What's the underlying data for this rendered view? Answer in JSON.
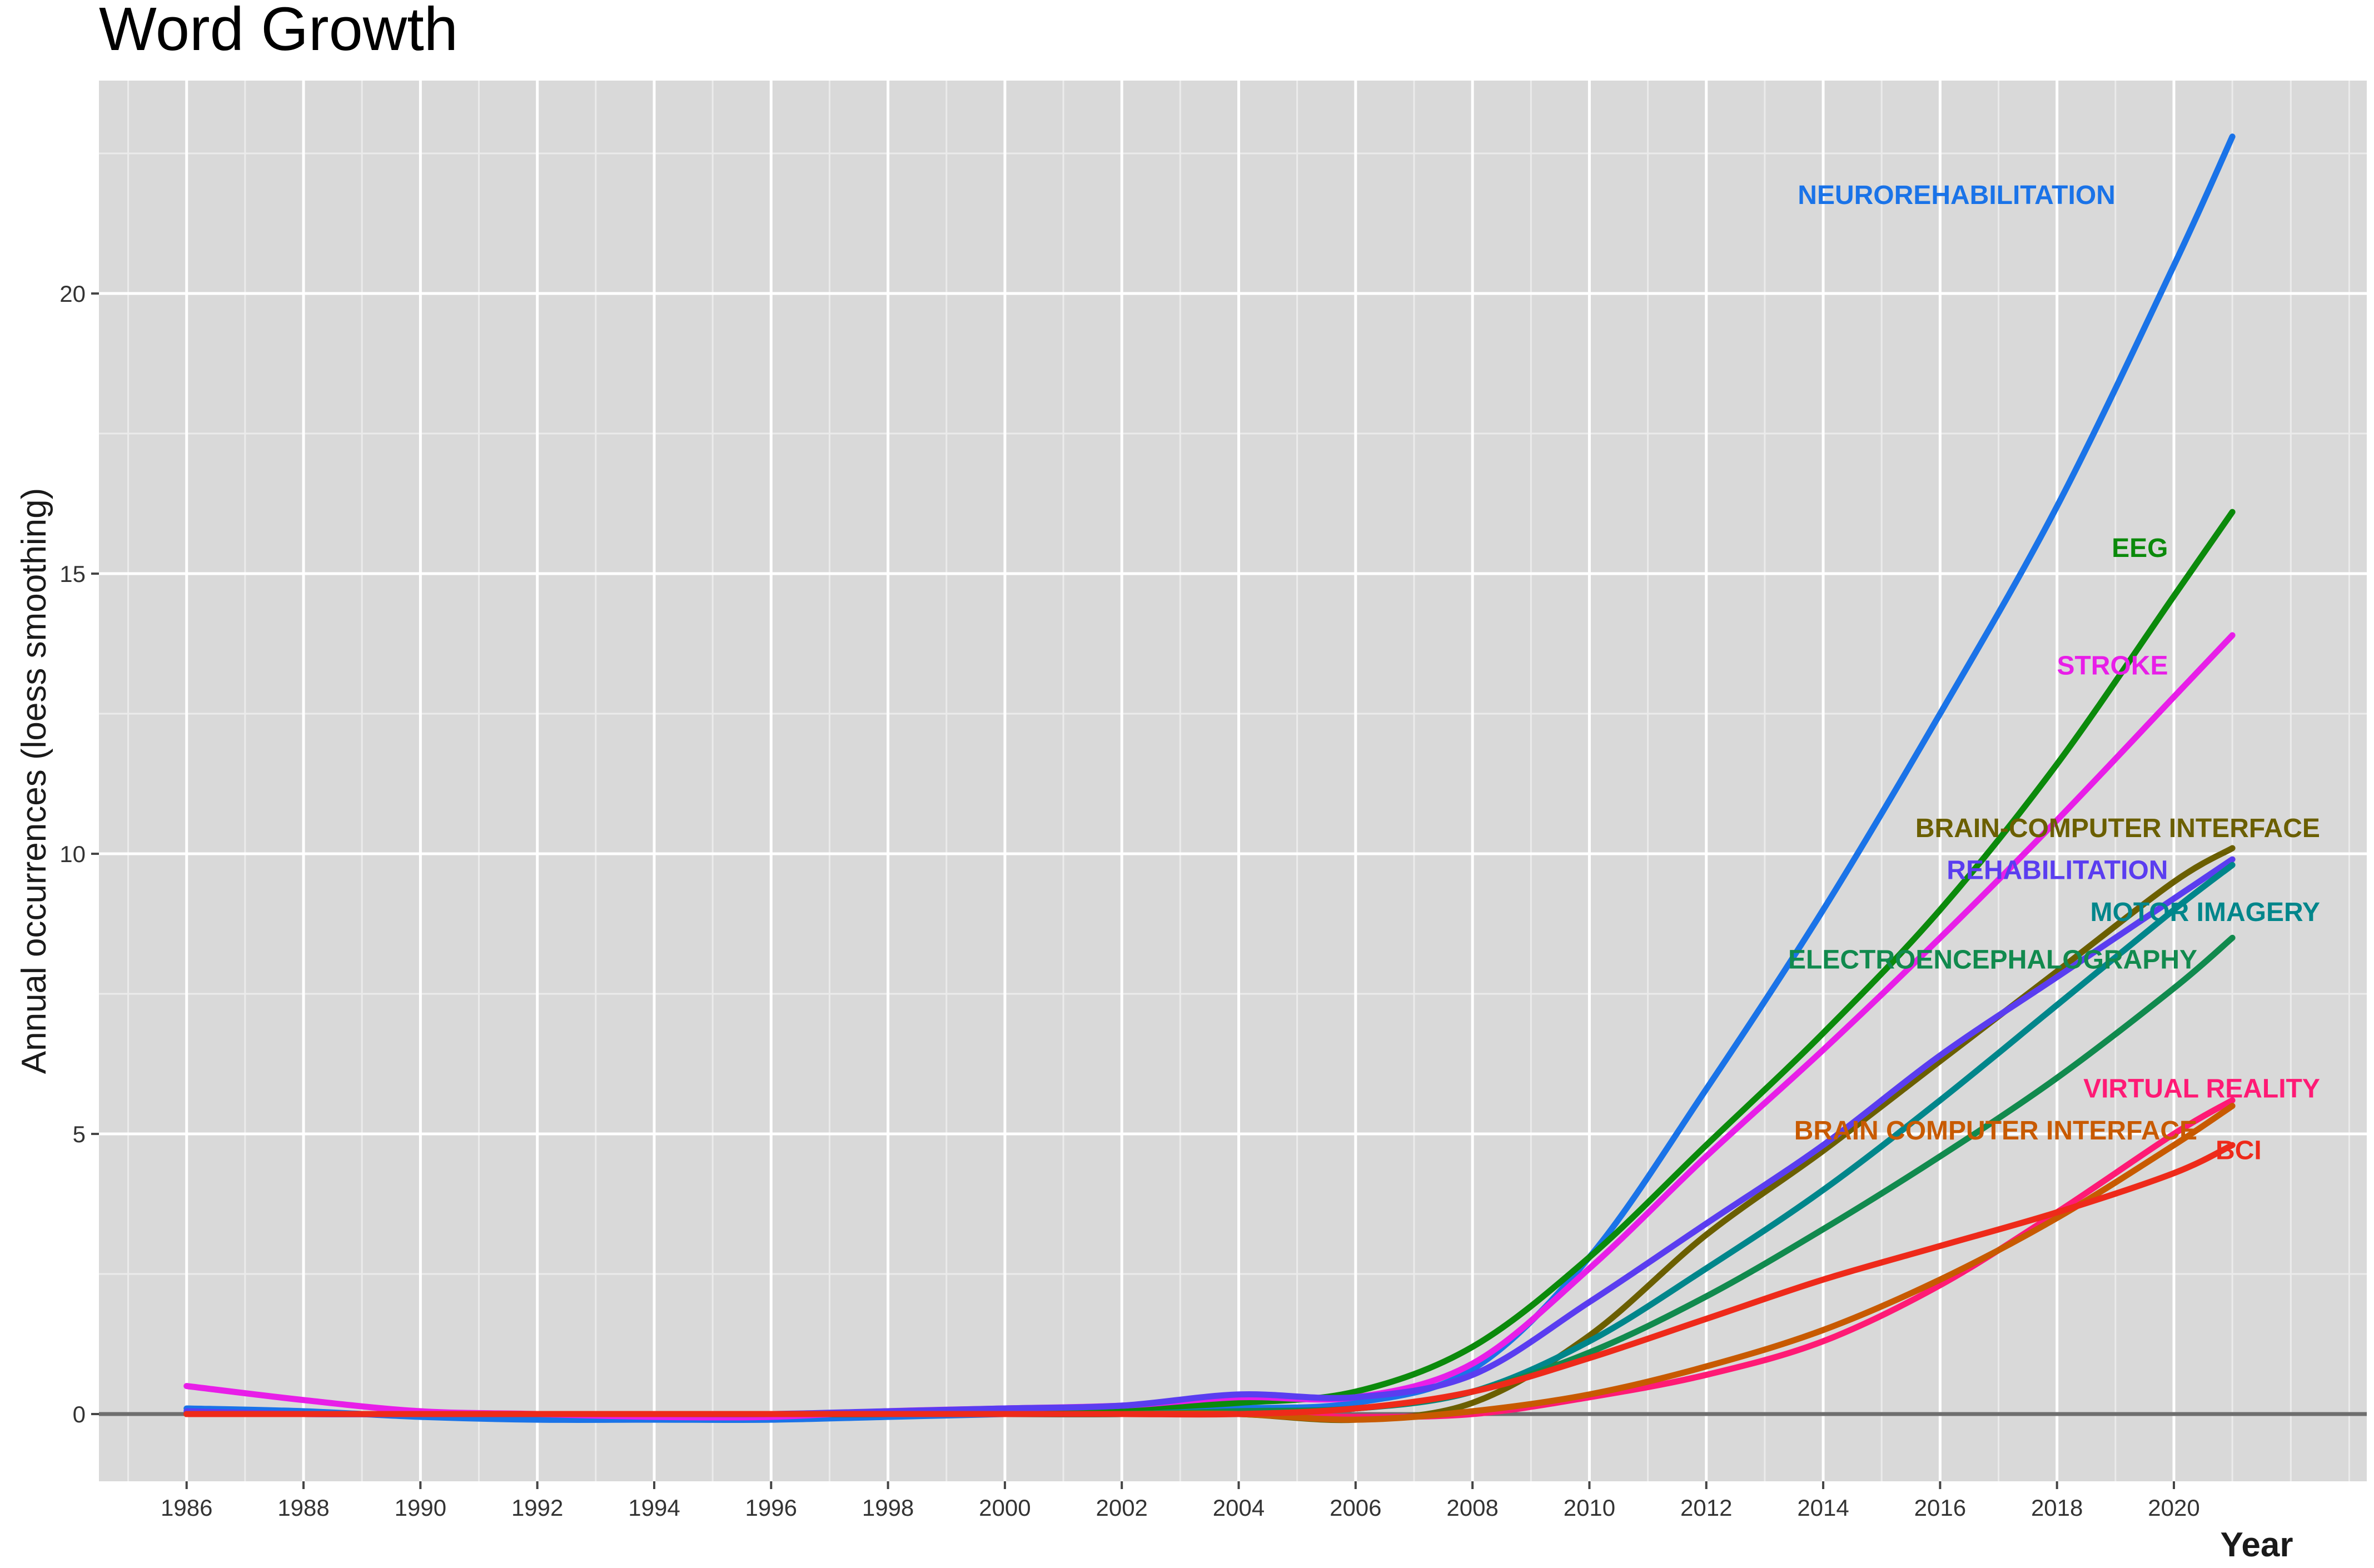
{
  "chart_data": {
    "type": "line",
    "title": "Word Growth",
    "xlabel": "Year",
    "ylabel": "Annual occurrences (loess smoothing)",
    "xlim": [
      1984.5,
      2023.3
    ],
    "ylim": [
      -1.2,
      23.8
    ],
    "x_ticks": [
      1986,
      1988,
      1990,
      1992,
      1994,
      1996,
      1998,
      2000,
      2002,
      2004,
      2006,
      2008,
      2010,
      2012,
      2014,
      2016,
      2018,
      2020
    ],
    "y_ticks": [
      0,
      5,
      10,
      15,
      20
    ],
    "x_tick_labels": [
      "1986",
      "1988",
      "1990",
      "1992",
      "1994",
      "1996",
      "1998",
      "2000",
      "2002",
      "2004",
      "2006",
      "2008",
      "2010",
      "2012",
      "2014",
      "2016",
      "2018",
      "2020"
    ],
    "y_tick_labels": [
      "0",
      "5",
      "10",
      "15",
      "20"
    ],
    "grid": true,
    "background": "#d9d9d9",
    "series": [
      {
        "name": "NEUROREHABILITATION",
        "color": "#1a73e8",
        "x": [
          1986,
          1988,
          1990,
          1992,
          1994,
          1996,
          1998,
          2000,
          2002,
          2004,
          2006,
          2008,
          2010,
          2012,
          2014,
          2016,
          2018,
          2020,
          2021
        ],
        "values": [
          0.1,
          0.05,
          -0.05,
          -0.1,
          -0.1,
          -0.1,
          -0.05,
          0.0,
          0.05,
          0.1,
          0.2,
          0.8,
          2.8,
          5.8,
          9.0,
          12.5,
          16.2,
          20.5,
          22.8
        ]
      },
      {
        "name": "EEG",
        "color": "#0b8a0b",
        "x": [
          1986,
          1988,
          1990,
          1992,
          1994,
          1996,
          1998,
          2000,
          2002,
          2004,
          2006,
          2008,
          2010,
          2012,
          2014,
          2016,
          2018,
          2020,
          2021
        ],
        "values": [
          0.0,
          0.0,
          0.0,
          0.0,
          0.0,
          0.0,
          0.0,
          0.05,
          0.1,
          0.2,
          0.4,
          1.2,
          2.8,
          4.8,
          6.8,
          9.0,
          11.6,
          14.6,
          16.1
        ]
      },
      {
        "name": "STROKE",
        "color": "#e81ee8",
        "x": [
          1986,
          1988,
          1990,
          1992,
          1994,
          1996,
          1998,
          2000,
          2002,
          2004,
          2006,
          2008,
          2010,
          2012,
          2014,
          2016,
          2018,
          2020,
          2021
        ],
        "values": [
          0.5,
          0.25,
          0.05,
          0.0,
          -0.05,
          -0.05,
          0.05,
          0.1,
          0.15,
          0.3,
          0.3,
          0.9,
          2.6,
          4.6,
          6.5,
          8.5,
          10.6,
          12.8,
          13.9
        ]
      },
      {
        "name": "BRAIN-COMPUTER INTERFACE",
        "color": "#6b5f00",
        "x": [
          1986,
          1988,
          1990,
          1992,
          1994,
          1996,
          1998,
          2000,
          2002,
          2004,
          2006,
          2008,
          2010,
          2012,
          2014,
          2016,
          2018,
          2020,
          2021
        ],
        "values": [
          0.0,
          0.0,
          0.0,
          0.0,
          0.0,
          0.0,
          0.0,
          0.0,
          0.0,
          0.0,
          -0.1,
          0.2,
          1.4,
          3.2,
          4.7,
          6.3,
          7.9,
          9.5,
          10.1
        ]
      },
      {
        "name": "REHABILITATION",
        "color": "#5a3df0",
        "x": [
          1986,
          1988,
          1990,
          1992,
          1994,
          1996,
          1998,
          2000,
          2002,
          2004,
          2006,
          2008,
          2010,
          2012,
          2014,
          2016,
          2018,
          2020,
          2021
        ],
        "values": [
          0.05,
          0.0,
          0.0,
          0.0,
          0.0,
          0.0,
          0.05,
          0.1,
          0.15,
          0.35,
          0.3,
          0.7,
          2.0,
          3.4,
          4.8,
          6.4,
          7.8,
          9.2,
          9.9
        ]
      },
      {
        "name": "MOTOR IMAGERY",
        "color": "#00868b",
        "x": [
          1986,
          1988,
          1990,
          1992,
          1994,
          1996,
          1998,
          2000,
          2002,
          2004,
          2006,
          2008,
          2010,
          2012,
          2014,
          2016,
          2018,
          2020,
          2021
        ],
        "values": [
          0.0,
          0.0,
          0.0,
          0.0,
          0.0,
          0.0,
          0.0,
          0.0,
          0.0,
          0.05,
          0.1,
          0.4,
          1.3,
          2.6,
          4.0,
          5.6,
          7.3,
          9.0,
          9.8
        ]
      },
      {
        "name": "ELECTROENCEPHALOGRAPHY",
        "color": "#118a4e",
        "x": [
          1986,
          1988,
          1990,
          1992,
          1994,
          1996,
          1998,
          2000,
          2002,
          2004,
          2006,
          2008,
          2010,
          2012,
          2014,
          2016,
          2018,
          2020,
          2021
        ],
        "values": [
          0.0,
          0.0,
          0.0,
          0.0,
          0.0,
          0.0,
          0.0,
          0.0,
          0.0,
          0.05,
          0.1,
          0.4,
          1.1,
          2.1,
          3.3,
          4.6,
          6.0,
          7.6,
          8.5
        ]
      },
      {
        "name": "VIRTUAL REALITY",
        "color": "#ff1a75",
        "x": [
          1986,
          1988,
          1990,
          1992,
          1994,
          1996,
          1998,
          2000,
          2002,
          2004,
          2006,
          2008,
          2010,
          2012,
          2014,
          2016,
          2018,
          2020,
          2021
        ],
        "values": [
          0.0,
          0.0,
          0.0,
          0.0,
          0.0,
          0.0,
          0.0,
          0.0,
          0.0,
          0.0,
          -0.05,
          0.0,
          0.3,
          0.7,
          1.3,
          2.3,
          3.6,
          5.0,
          5.6
        ]
      },
      {
        "name": "BRAIN COMPUTER INTERFACE",
        "color": "#c85a00",
        "x": [
          1986,
          1988,
          1990,
          1992,
          1994,
          1996,
          1998,
          2000,
          2002,
          2004,
          2006,
          2008,
          2010,
          2012,
          2014,
          2016,
          2018,
          2020,
          2021
        ],
        "values": [
          0.0,
          0.0,
          0.0,
          0.0,
          0.0,
          0.0,
          0.0,
          0.0,
          0.0,
          0.0,
          -0.1,
          0.05,
          0.35,
          0.85,
          1.5,
          2.4,
          3.5,
          4.8,
          5.5
        ]
      },
      {
        "name": "BCI",
        "color": "#ee2a1a",
        "x": [
          1986,
          1988,
          1990,
          1992,
          1994,
          1996,
          1998,
          2000,
          2002,
          2004,
          2006,
          2008,
          2010,
          2012,
          2014,
          2016,
          2018,
          2020,
          2021
        ],
        "values": [
          0.0,
          0.0,
          0.0,
          0.0,
          0.0,
          0.0,
          0.0,
          0.0,
          0.0,
          0.0,
          0.1,
          0.4,
          1.0,
          1.7,
          2.4,
          3.0,
          3.6,
          4.3,
          4.8
        ]
      }
    ],
    "annotations": [
      {
        "text": "NEUROREHABILITATION",
        "series": 0,
        "x": 2019.0,
        "y": 21.6,
        "anchor": "end"
      },
      {
        "text": "EEG",
        "series": 1,
        "x": 2019.9,
        "y": 15.3,
        "anchor": "end"
      },
      {
        "text": "STROKE",
        "series": 2,
        "x": 2019.9,
        "y": 13.2,
        "anchor": "end"
      },
      {
        "text": "BRAIN-COMPUTER INTERFACE",
        "series": 3,
        "x": 2022.5,
        "y": 10.3,
        "anchor": "end"
      },
      {
        "text": "REHABILITATION",
        "series": 4,
        "x": 2019.9,
        "y": 9.55,
        "anchor": "end"
      },
      {
        "text": "MOTOR IMAGERY",
        "series": 5,
        "x": 2022.5,
        "y": 8.8,
        "anchor": "end"
      },
      {
        "text": "ELECTROENCEPHALOGRAPHY",
        "series": 6,
        "x": 2020.4,
        "y": 7.95,
        "anchor": "end"
      },
      {
        "text": "VIRTUAL REALITY",
        "series": 7,
        "x": 2022.5,
        "y": 5.65,
        "anchor": "end"
      },
      {
        "text": "BRAIN COMPUTER INTERFACE",
        "series": 8,
        "x": 2020.4,
        "y": 4.9,
        "anchor": "end"
      },
      {
        "text": "BCI",
        "series": 9,
        "x": 2021.5,
        "y": 4.55,
        "anchor": "end"
      }
    ]
  }
}
